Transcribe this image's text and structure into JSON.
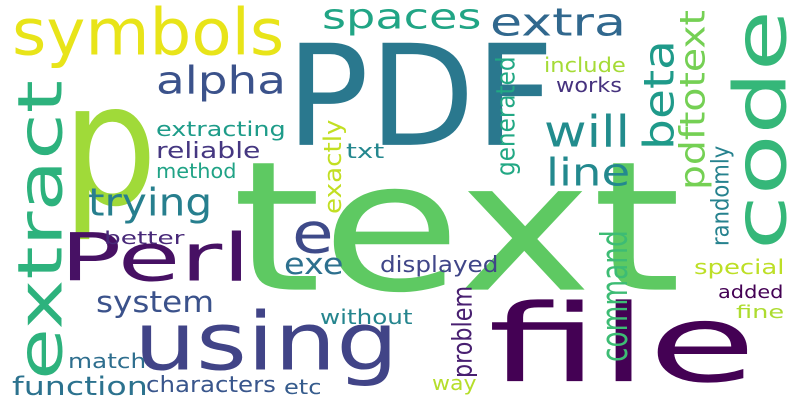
{
  "words": [
    {
      "text": "text",
      "color": "#5ec962",
      "vertical": false
    },
    {
      "text": "PDF",
      "color": "#2a788e",
      "vertical": false
    },
    {
      "text": "p",
      "color": "#a0da39",
      "vertical": false
    },
    {
      "text": "file",
      "color": "#440154",
      "vertical": false
    },
    {
      "text": "code",
      "color": "#35b779",
      "vertical": true
    },
    {
      "text": "using",
      "color": "#414487",
      "vertical": false
    },
    {
      "text": "symbols",
      "color": "#e8e419",
      "vertical": false
    },
    {
      "text": "extract",
      "color": "#2db27d",
      "vertical": true
    },
    {
      "text": "Perl",
      "color": "#471164",
      "vertical": false
    },
    {
      "text": "e",
      "color": "#3e4a89",
      "vertical": false
    },
    {
      "text": "spaces",
      "color": "#21a585",
      "vertical": false
    },
    {
      "text": "extra",
      "color": "#31688e",
      "vertical": false
    },
    {
      "text": "alpha",
      "color": "#3b528b",
      "vertical": false
    },
    {
      "text": "beta",
      "color": "#1f9a8a",
      "vertical": true
    },
    {
      "text": "will",
      "color": "#228c8d",
      "vertical": false
    },
    {
      "text": "line",
      "color": "#23898e",
      "vertical": false
    },
    {
      "text": "pdftotext",
      "color": "#75d054",
      "vertical": true
    },
    {
      "text": "trying",
      "color": "#277f8e",
      "vertical": false
    },
    {
      "text": "system",
      "color": "#3b528b",
      "vertical": false
    },
    {
      "text": "command",
      "color": "#3dbc74",
      "vertical": true
    },
    {
      "text": "exe",
      "color": "#2d708e",
      "vertical": false
    },
    {
      "text": "function",
      "color": "#2c728e",
      "vertical": false
    },
    {
      "text": "extracting",
      "color": "#1e9c89",
      "vertical": false
    },
    {
      "text": "reliable",
      "color": "#453781",
      "vertical": false
    },
    {
      "text": "method",
      "color": "#20a386",
      "vertical": false
    },
    {
      "text": "better",
      "color": "#482878",
      "vertical": false
    },
    {
      "text": "include",
      "color": "#a5db36",
      "vertical": false
    },
    {
      "text": "works",
      "color": "#46327e",
      "vertical": false
    },
    {
      "text": "generated",
      "color": "#22a884",
      "vertical": true
    },
    {
      "text": "txt",
      "color": "#24878e",
      "vertical": false
    },
    {
      "text": "exactly",
      "color": "#c2df23",
      "vertical": true
    },
    {
      "text": "displayed",
      "color": "#404688",
      "vertical": false
    },
    {
      "text": "randomly",
      "color": "#26828e",
      "vertical": true
    },
    {
      "text": "special",
      "color": "#bddf26",
      "vertical": false
    },
    {
      "text": "added",
      "color": "#440154",
      "vertical": false
    },
    {
      "text": "fine",
      "color": "#addc30",
      "vertical": false
    },
    {
      "text": "without",
      "color": "#25858e",
      "vertical": false
    },
    {
      "text": "problem",
      "color": "#481f70",
      "vertical": true
    },
    {
      "text": "match",
      "color": "#2e6e8e",
      "vertical": false
    },
    {
      "text": "characters",
      "color": "#39568c",
      "vertical": false
    },
    {
      "text": "etc",
      "color": "#365c8d",
      "vertical": false
    },
    {
      "text": "way",
      "color": "#b5de2b",
      "vertical": false
    }
  ]
}
